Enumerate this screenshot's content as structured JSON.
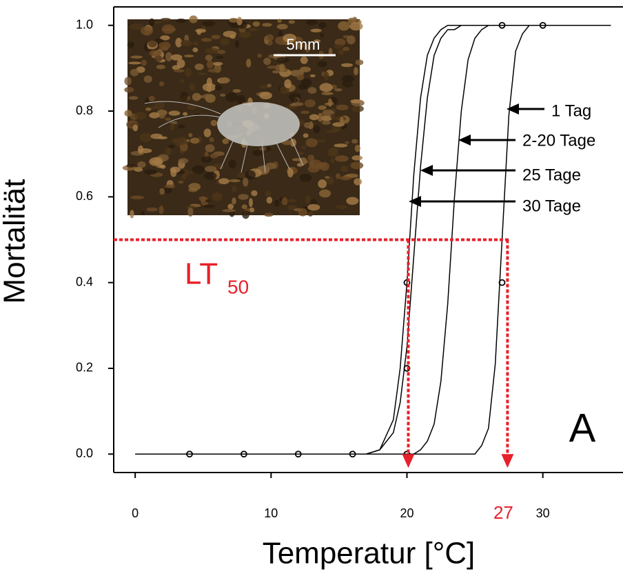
{
  "chart_data": {
    "type": "line",
    "x_label": "Temperatur [°C]",
    "y_label": "Mortalität",
    "panel_label": "A",
    "xlim": [
      -1.58,
      35.9
    ],
    "ylim": [
      -0.043,
      1.043
    ],
    "xticks": [
      0,
      10,
      20,
      30
    ],
    "yticks": [
      {
        "value": 0,
        "label": "0.0"
      },
      0.2,
      0.4,
      0.6,
      0.8,
      {
        "value": 1,
        "label": "1.0"
      }
    ],
    "x": [
      0,
      17,
      18,
      19,
      19.5,
      20,
      20.5,
      21,
      21.5,
      22,
      22.5,
      23,
      23.5,
      24,
      24.5,
      25,
      25.5,
      26,
      26.5,
      27,
      27.5,
      28,
      28.5,
      29,
      30,
      35
    ],
    "series": [
      {
        "name": "1 Tag",
        "color": "#000000",
        "values": [
          0,
          0,
          0,
          0,
          0,
          0,
          0,
          0,
          0,
          0,
          0,
          0,
          0,
          0,
          0,
          0,
          0.02,
          0.06,
          0.21,
          0.5,
          0.79,
          0.94,
          0.98,
          1,
          1,
          1
        ]
      },
      {
        "name": "2-20 Tage",
        "color": "#000000",
        "values": [
          0,
          0,
          0,
          0,
          0,
          0,
          0,
          0.01,
          0.03,
          0.07,
          0.17,
          0.35,
          0.6,
          0.8,
          0.92,
          0.97,
          0.99,
          1,
          1,
          1,
          1,
          1,
          1,
          1,
          1,
          1
        ]
      },
      {
        "name": "25 Tage",
        "color": "#000000",
        "values": [
          0,
          0,
          0.01,
          0.05,
          0.12,
          0.25,
          0.46,
          0.67,
          0.83,
          0.93,
          0.97,
          0.99,
          0.99,
          1,
          1,
          1,
          1,
          1,
          1,
          1,
          1,
          1,
          1,
          1,
          1,
          1
        ]
      },
      {
        "name": "30 Tage",
        "color": "#000000",
        "values": [
          0,
          0,
          0.01,
          0.08,
          0.2,
          0.4,
          0.65,
          0.83,
          0.93,
          0.97,
          0.99,
          1,
          1,
          1,
          1,
          1,
          1,
          1,
          1,
          1,
          1,
          1,
          1,
          1,
          1,
          1
        ]
      }
    ],
    "points": {
      "x": [
        4,
        8,
        12,
        16,
        20,
        20,
        20,
        27,
        27,
        30
      ],
      "values": [
        0,
        0,
        0,
        0,
        0,
        0.2,
        0.4,
        0.4,
        1,
        1
      ],
      "color": "#000000"
    },
    "lt50_label": {
      "text": "LT",
      "subscript": "50"
    },
    "lt50_level": 0.5,
    "lt50_marks": [
      {
        "value": 20.1
      },
      {
        "value": 27.4,
        "label": "27"
      }
    ],
    "reference_color": "#e8202a",
    "inset_scale_label": "5mm"
  }
}
